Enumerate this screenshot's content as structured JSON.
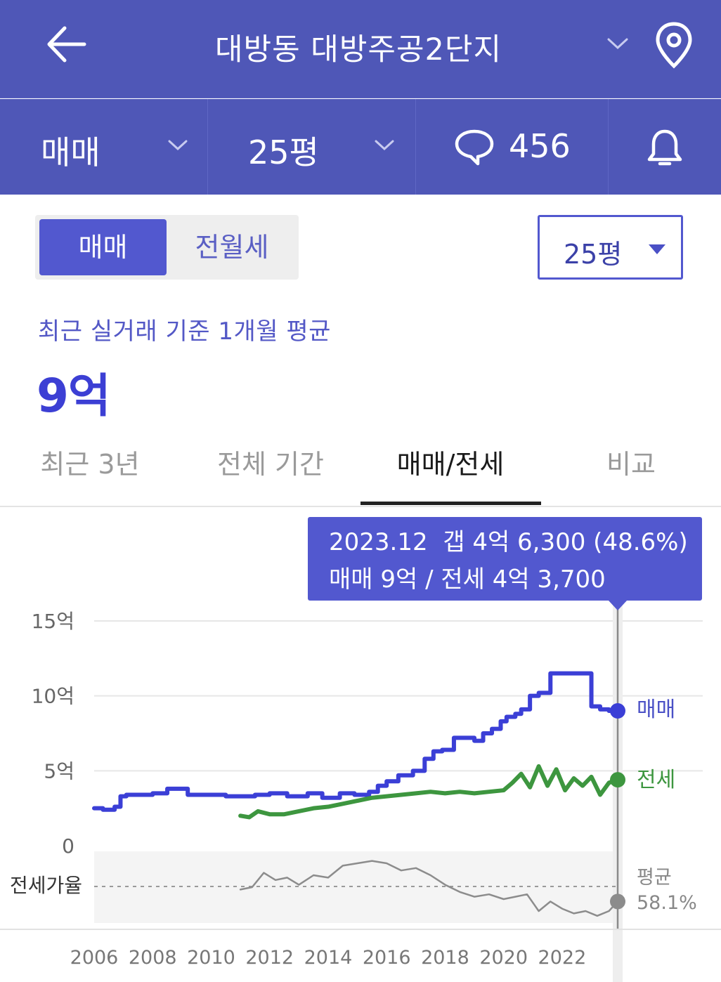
{
  "header": {
    "title": "대방동 대방주공2단지"
  },
  "filters": {
    "trade_type": "매매",
    "size": "25평",
    "comment_count": "456"
  },
  "toggle": {
    "active": "매매",
    "inactive": "전월세"
  },
  "size_select": {
    "value": "25평"
  },
  "summary": {
    "caption": "최근 실거래 기준 1개월 평균",
    "price": "9억"
  },
  "tabs": [
    {
      "label": "최근 3년"
    },
    {
      "label": "전체 기간"
    },
    {
      "label": "매매/전세"
    },
    {
      "label": "비교"
    }
  ],
  "tooltip": {
    "date": "2023.12",
    "gap": "갭 4억 6,300 (48.6%)",
    "detail": "매매 9억 / 전세 4억 3,700"
  },
  "colors": {
    "header_bg": "#4f57b7",
    "accent": "#5258cf",
    "sale_line": "#3b3fd6",
    "jeonse_line": "#3d963f",
    "ratio_line": "#8c8c8c"
  },
  "chart_data": {
    "type": "line",
    "ylim": [
      0,
      15
    ],
    "y_ticks": [
      "15억",
      "10억",
      "5억",
      "0"
    ],
    "x_ticks": [
      "2006",
      "2008",
      "2010",
      "2012",
      "2014",
      "2016",
      "2018",
      "2020",
      "2022"
    ],
    "ratio_label": "전세가율",
    "ratio_avg_label": "평균",
    "ratio_avg_value": "58.1%",
    "series": [
      {
        "name": "매매",
        "x": [
          2006.0,
          2006.3,
          2006.7,
          2006.9,
          2007.1,
          2007.4,
          2008.0,
          2008.5,
          2008.9,
          2009.2,
          2009.8,
          2010.5,
          2011.5,
          2012.0,
          2012.6,
          2013.3,
          2013.8,
          2014.4,
          2014.9,
          2015.4,
          2015.7,
          2016.0,
          2016.4,
          2016.9,
          2017.3,
          2017.6,
          2017.9,
          2018.3,
          2018.7,
          2019.0,
          2019.3,
          2019.6,
          2019.9,
          2020.1,
          2020.4,
          2020.6,
          2020.9,
          2021.2,
          2021.6,
          2022.0,
          2022.4,
          2022.8,
          2023.0,
          2023.3,
          2023.6,
          2023.9
        ],
        "values": [
          2.5,
          2.4,
          2.6,
          3.3,
          3.4,
          3.4,
          3.5,
          3.8,
          3.8,
          3.4,
          3.4,
          3.3,
          3.4,
          3.5,
          3.3,
          3.5,
          3.2,
          3.5,
          3.4,
          3.6,
          4.0,
          4.3,
          4.7,
          5.0,
          5.8,
          6.3,
          6.4,
          7.2,
          7.2,
          7.0,
          7.5,
          7.8,
          8.3,
          8.6,
          8.8,
          9.1,
          10.0,
          10.2,
          11.5,
          11.5,
          11.5,
          11.5,
          9.3,
          9.1,
          9.0,
          9.0
        ]
      },
      {
        "name": "전세",
        "x": [
          2011.0,
          2011.3,
          2011.6,
          2012.0,
          2012.5,
          2013.0,
          2013.5,
          2014.0,
          2014.5,
          2015.0,
          2015.5,
          2016.0,
          2016.5,
          2017.0,
          2017.5,
          2018.0,
          2018.5,
          2019.0,
          2019.5,
          2020.0,
          2020.3,
          2020.6,
          2020.9,
          2021.2,
          2021.5,
          2021.8,
          2022.1,
          2022.4,
          2022.7,
          2023.0,
          2023.3,
          2023.6,
          2023.9
        ],
        "values": [
          2.0,
          1.9,
          2.3,
          2.1,
          2.1,
          2.3,
          2.5,
          2.6,
          2.8,
          3.0,
          3.2,
          3.3,
          3.4,
          3.5,
          3.6,
          3.5,
          3.6,
          3.5,
          3.6,
          3.7,
          4.2,
          4.8,
          3.9,
          5.3,
          4.0,
          5.1,
          3.7,
          4.5,
          4.0,
          4.6,
          3.4,
          4.2,
          4.4
        ]
      },
      {
        "name": "전세가율",
        "x": [
          2011.0,
          2011.4,
          2011.8,
          2012.2,
          2012.6,
          2013.0,
          2013.5,
          2014.0,
          2014.5,
          2015.0,
          2015.5,
          2016.0,
          2016.5,
          2017.0,
          2017.5,
          2018.0,
          2018.5,
          2019.0,
          2019.5,
          2020.0,
          2020.4,
          2020.8,
          2021.2,
          2021.6,
          2022.0,
          2022.4,
          2022.8,
          2023.2,
          2023.6,
          2023.9
        ],
        "values": [
          58,
          60,
          72,
          66,
          68,
          62,
          70,
          68,
          78,
          80,
          82,
          80,
          74,
          76,
          70,
          62,
          56,
          52,
          54,
          50,
          52,
          54,
          40,
          48,
          42,
          38,
          40,
          36,
          40,
          48
        ]
      }
    ],
    "grid": true,
    "legend": "right"
  }
}
